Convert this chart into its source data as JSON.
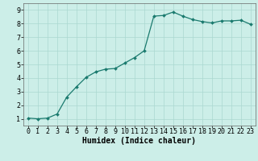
{
  "x": [
    0,
    1,
    2,
    3,
    4,
    5,
    6,
    7,
    8,
    9,
    10,
    11,
    12,
    13,
    14,
    15,
    16,
    17,
    18,
    19,
    20,
    21,
    22,
    23
  ],
  "y": [
    1.05,
    1.0,
    1.05,
    1.35,
    2.6,
    3.35,
    4.05,
    4.45,
    4.65,
    4.7,
    5.1,
    5.5,
    6.0,
    8.55,
    8.6,
    8.85,
    8.55,
    8.3,
    8.15,
    8.05,
    8.2,
    8.2,
    8.25,
    7.95
  ],
  "xlabel": "Humidex (Indice chaleur)",
  "xlim": [
    -0.5,
    23.5
  ],
  "ylim": [
    0.5,
    9.5
  ],
  "yticks": [
    1,
    2,
    3,
    4,
    5,
    6,
    7,
    8,
    9
  ],
  "xticks": [
    0,
    1,
    2,
    3,
    4,
    5,
    6,
    7,
    8,
    9,
    10,
    11,
    12,
    13,
    14,
    15,
    16,
    17,
    18,
    19,
    20,
    21,
    22,
    23
  ],
  "line_color": "#1a7a6e",
  "marker_color": "#1a7a6e",
  "bg_color": "#cceee8",
  "grid_color": "#aad8d0",
  "xlabel_fontsize": 7,
  "tick_fontsize": 6
}
